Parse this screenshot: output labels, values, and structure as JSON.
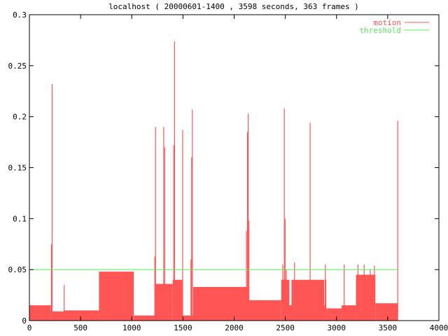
{
  "chart_data": {
    "type": "area",
    "title": "localhost ( 20000601-1400 , 3598 seconds, 363 frames )",
    "xlabel": "",
    "ylabel": "",
    "xlim": [
      0,
      4000
    ],
    "ylim": [
      0,
      0.3
    ],
    "x_ticks": [
      0,
      500,
      1000,
      1500,
      2000,
      2500,
      3000,
      3500,
      4000
    ],
    "x_tick_labels": [
      "0",
      "500",
      "1000",
      "1500",
      "2000",
      "2500",
      "3000",
      "3500",
      "4000"
    ],
    "y_ticks": [
      0,
      0.05,
      0.1,
      0.15,
      0.2,
      0.25,
      0.3
    ],
    "y_tick_labels": [
      "0",
      "0.05",
      "0.1",
      "0.15",
      "0.2",
      "0.25",
      "0.3"
    ],
    "grid": false,
    "legend_position": "top-right",
    "series": [
      {
        "name": "motion",
        "color": "#ff5555",
        "kind": "filled-impulses",
        "segments": [
          {
            "x": [
              0,
              210
            ],
            "y": 0.015
          },
          {
            "x": [
              210,
              340
            ],
            "y": 0.009
          },
          {
            "x": [
              340,
              680
            ],
            "y": 0.01
          },
          {
            "x": [
              680,
              1020
            ],
            "y": 0.048
          },
          {
            "x": [
              1020,
              1230
            ],
            "y": 0.005
          },
          {
            "x": [
              1230,
              1400
            ],
            "y": 0.036
          },
          {
            "x": [
              1400,
              1500
            ],
            "y": 0.04
          },
          {
            "x": [
              1500,
              1600
            ],
            "y": 0.005
          },
          {
            "x": [
              1600,
              2130
            ],
            "y": 0.033
          },
          {
            "x": [
              2130,
              2460
            ],
            "y": 0.02
          },
          {
            "x": [
              2460,
              2900
            ],
            "y": 0.04
          },
          {
            "x": [
              2900,
              3050
            ],
            "y": 0.012
          },
          {
            "x": [
              3050,
              3190
            ],
            "y": 0.015
          },
          {
            "x": [
              3190,
              3380
            ],
            "y": 0.045
          },
          {
            "x": [
              3380,
              3598
            ],
            "y": 0.017
          }
        ],
        "spikes": [
          {
            "x": 215,
            "y": 0.075
          },
          {
            "x": 222,
            "y": 0.232
          },
          {
            "x": 340,
            "y": 0.035
          },
          {
            "x": 1225,
            "y": 0.063
          },
          {
            "x": 1232,
            "y": 0.19
          },
          {
            "x": 1312,
            "y": 0.19
          },
          {
            "x": 1322,
            "y": 0.17
          },
          {
            "x": 1410,
            "y": 0.172
          },
          {
            "x": 1418,
            "y": 0.274
          },
          {
            "x": 1497,
            "y": 0.187
          },
          {
            "x": 1578,
            "y": 0.06
          },
          {
            "x": 1585,
            "y": 0.16
          },
          {
            "x": 1592,
            "y": 0.207
          },
          {
            "x": 2120,
            "y": 0.088
          },
          {
            "x": 2130,
            "y": 0.185
          },
          {
            "x": 2137,
            "y": 0.203
          },
          {
            "x": 2145,
            "y": 0.098
          },
          {
            "x": 2475,
            "y": 0.055
          },
          {
            "x": 2490,
            "y": 0.208
          },
          {
            "x": 2498,
            "y": 0.1
          },
          {
            "x": 2510,
            "y": 0.05
          },
          {
            "x": 2590,
            "y": 0.057
          },
          {
            "x": 2742,
            "y": 0.194
          },
          {
            "x": 2890,
            "y": 0.055
          },
          {
            "x": 3075,
            "y": 0.055
          },
          {
            "x": 3210,
            "y": 0.055
          },
          {
            "x": 3270,
            "y": 0.055
          },
          {
            "x": 3330,
            "y": 0.05
          },
          {
            "x": 3370,
            "y": 0.054
          },
          {
            "x": 3598,
            "y": 0.196
          }
        ],
        "dips": [
          {
            "x": [
              2540,
              2560
            ],
            "y": 0.015
          },
          {
            "x": [
              2880,
              2890
            ],
            "y": 0.015
          }
        ]
      },
      {
        "name": "threshold",
        "color": "#55ee55",
        "kind": "line",
        "x": [
          0,
          3598
        ],
        "y": [
          0.05,
          0.05
        ]
      }
    ]
  }
}
